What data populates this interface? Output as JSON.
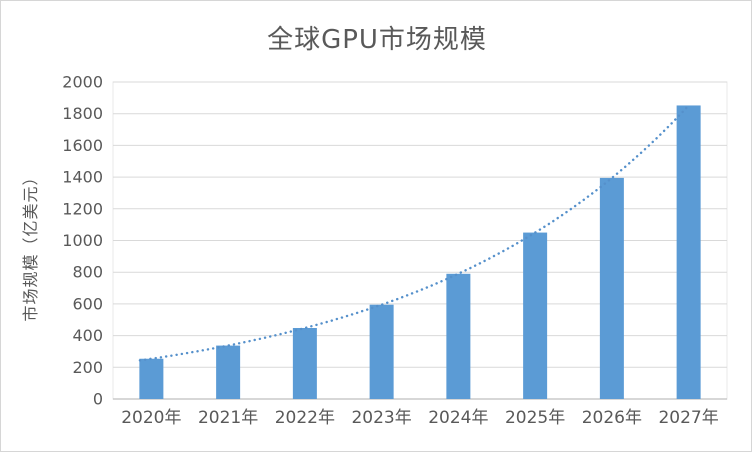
{
  "chart_data": {
    "type": "bar",
    "title": "全球GPU市场规模",
    "xlabel": "",
    "ylabel": "市场规模（亿美元）",
    "categories": [
      "2020年",
      "2021年",
      "2022年",
      "2023年",
      "2024年",
      "2025年",
      "2026年",
      "2027年"
    ],
    "values": [
      254,
      337,
      448,
      595,
      790,
      1050,
      1395,
      1852
    ],
    "ylim": [
      0,
      2000
    ],
    "yticks": [
      0,
      200,
      400,
      600,
      800,
      1000,
      1200,
      1400,
      1600,
      1800,
      2000
    ],
    "grid": true,
    "legend": "none",
    "trendline": {
      "type": "exponential",
      "style": "dotted",
      "color": "#5590CB"
    },
    "colors": {
      "bar": "#5B9BD5",
      "text": "#595959",
      "gridline": "#D9D9D9",
      "axis_line": "#BFBFBF",
      "plot_border": "#E8E8E8"
    }
  }
}
